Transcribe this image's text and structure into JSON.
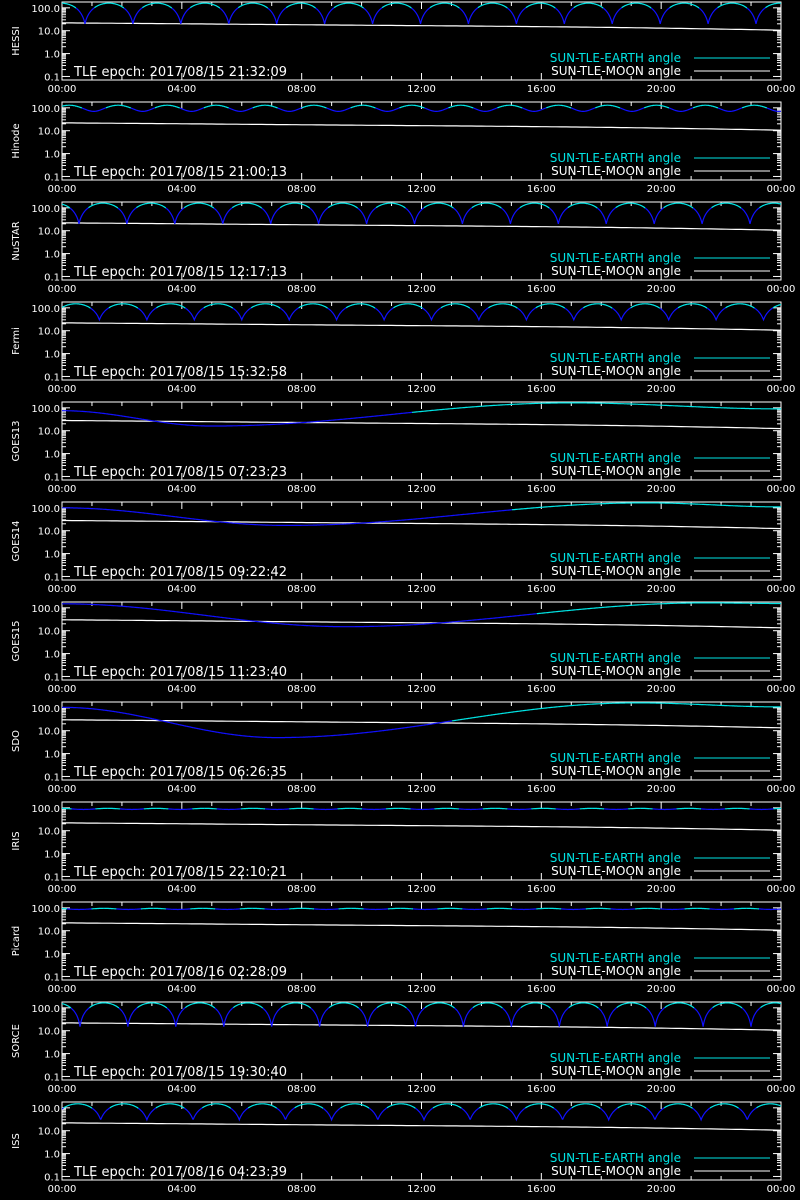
{
  "figure": {
    "background": "#000000",
    "axis_color": "#ffffff",
    "earth_color_day": "#00e5e5",
    "earth_color_night": "#1010ff",
    "moon_color": "#ffffff"
  },
  "chart_data": [
    {
      "type": "line",
      "ylabel": "HESSI",
      "epoch_label": "TLE epoch: 2017/08/15 21:32:09",
      "x_ticks": [
        "00:00",
        "04:00",
        "08:00",
        "12:00",
        "16:00",
        "20:00",
        "00:00"
      ],
      "y_ticks": [
        "100.0",
        "10.0",
        "1.0",
        "0.1"
      ],
      "ylim": [
        0.07,
        180
      ],
      "yscale": "log",
      "orbit_minutes": 96,
      "min_angle": 20,
      "max_angle": 160,
      "profile": "arch",
      "night_fraction": 0.38,
      "phase_minutes": 50,
      "moon_start": 22,
      "moon_end": 11,
      "series": [
        {
          "name": "SUN-TLE-EARTH angle",
          "color": "#00e5e5"
        },
        {
          "name": "SUN-TLE-MOON angle",
          "color": "#ffffff"
        }
      ]
    },
    {
      "type": "line",
      "ylabel": "Hinode",
      "epoch_label": "TLE epoch: 2017/08/15 21:00:13",
      "x_ticks": [
        "00:00",
        "04:00",
        "08:00",
        "12:00",
        "16:00",
        "20:00",
        "00:00"
      ],
      "y_ticks": [
        "100.0",
        "10.0",
        "1.0",
        "0.1"
      ],
      "ylim": [
        0.07,
        180
      ],
      "yscale": "log",
      "orbit_minutes": 98,
      "min_angle": 70,
      "max_angle": 130,
      "profile": "sin",
      "night_fraction": 0.5,
      "phase_minutes": 10,
      "moon_start": 22,
      "moon_end": 11,
      "series": [
        {
          "name": "SUN-TLE-EARTH angle",
          "color": "#00e5e5"
        },
        {
          "name": "SUN-TLE-MOON angle",
          "color": "#ffffff"
        }
      ]
    },
    {
      "type": "line",
      "ylabel": "NuSTAR",
      "epoch_label": "TLE epoch: 2017/08/15 12:17:13",
      "x_ticks": [
        "00:00",
        "04:00",
        "08:00",
        "12:00",
        "16:00",
        "20:00",
        "00:00"
      ],
      "y_ticks": [
        "100.0",
        "10.0",
        "1.0",
        "0.1"
      ],
      "ylim": [
        0.07,
        180
      ],
      "yscale": "log",
      "orbit_minutes": 96,
      "min_angle": 20,
      "max_angle": 160,
      "profile": "arch",
      "night_fraction": 0.38,
      "phase_minutes": 62,
      "moon_start": 22,
      "moon_end": 11,
      "series": [
        {
          "name": "SUN-TLE-EARTH angle",
          "color": "#00e5e5"
        },
        {
          "name": "SUN-TLE-MOON angle",
          "color": "#ffffff"
        }
      ]
    },
    {
      "type": "line",
      "ylabel": "Fermi",
      "epoch_label": "TLE epoch: 2017/08/15 15:32:58",
      "x_ticks": [
        "00:00",
        "04:00",
        "08:00",
        "12:00",
        "16:00",
        "20:00",
        "00:00"
      ],
      "y_ticks": [
        "100.0",
        "10.0",
        "1.0",
        "0.1"
      ],
      "ylim": [
        0.07,
        180
      ],
      "yscale": "log",
      "orbit_minutes": 95,
      "min_angle": 30,
      "max_angle": 150,
      "profile": "arch",
      "night_fraction": 0.38,
      "phase_minutes": 20,
      "moon_start": 22,
      "moon_end": 11,
      "series": [
        {
          "name": "SUN-TLE-EARTH angle",
          "color": "#00e5e5"
        },
        {
          "name": "SUN-TLE-MOON angle",
          "color": "#ffffff"
        }
      ]
    },
    {
      "type": "line",
      "ylabel": "GOES13",
      "epoch_label": "TLE epoch: 2017/08/15 07:23:23",
      "x_ticks": [
        "00:00",
        "04:00",
        "08:00",
        "12:00",
        "16:00",
        "20:00",
        "00:00"
      ],
      "y_ticks": [
        "100.0",
        "10.0",
        "1.0",
        "0.1"
      ],
      "ylim": [
        0.07,
        180
      ],
      "yscale": "log",
      "profile": "geo",
      "geo_points": [
        [
          0,
          75
        ],
        [
          300,
          16
        ],
        [
          1020,
          165
        ],
        [
          1440,
          90
        ]
      ],
      "night_window": [
        0,
        700
      ],
      "moon_start": 28,
      "moon_end": 13,
      "series": [
        {
          "name": "SUN-TLE-EARTH angle",
          "color": "#00e5e5"
        },
        {
          "name": "SUN-TLE-MOON angle",
          "color": "#ffffff"
        }
      ]
    },
    {
      "type": "line",
      "ylabel": "GOES14",
      "epoch_label": "TLE epoch: 2017/08/15 09:22:42",
      "x_ticks": [
        "00:00",
        "04:00",
        "08:00",
        "12:00",
        "16:00",
        "20:00",
        "00:00"
      ],
      "y_ticks": [
        "100.0",
        "10.0",
        "1.0",
        "0.1"
      ],
      "ylim": [
        0.07,
        180
      ],
      "yscale": "log",
      "profile": "geo",
      "geo_points": [
        [
          0,
          100
        ],
        [
          450,
          17
        ],
        [
          1170,
          165
        ],
        [
          1440,
          110
        ]
      ],
      "night_window": [
        0,
        900
      ],
      "moon_start": 28,
      "moon_end": 13,
      "series": [
        {
          "name": "SUN-TLE-EARTH angle",
          "color": "#00e5e5"
        },
        {
          "name": "SUN-TLE-MOON angle",
          "color": "#ffffff"
        }
      ]
    },
    {
      "type": "line",
      "ylabel": "GOES15",
      "epoch_label": "TLE epoch: 2017/08/15 11:23:40",
      "x_ticks": [
        "00:00",
        "04:00",
        "08:00",
        "12:00",
        "16:00",
        "20:00",
        "00:00"
      ],
      "y_ticks": [
        "100.0",
        "10.0",
        "1.0",
        "0.1"
      ],
      "ylim": [
        0.07,
        180
      ],
      "yscale": "log",
      "profile": "geo",
      "geo_points": [
        [
          0,
          150
        ],
        [
          570,
          15
        ],
        [
          1290,
          165
        ],
        [
          1440,
          155
        ]
      ],
      "night_window": [
        0,
        950
      ],
      "moon_start": 30,
      "moon_end": 14,
      "series": [
        {
          "name": "SUN-TLE-EARTH angle",
          "color": "#00e5e5"
        },
        {
          "name": "SUN-TLE-MOON angle",
          "color": "#ffffff"
        }
      ]
    },
    {
      "type": "line",
      "ylabel": "SDO",
      "epoch_label": "TLE epoch: 2017/08/15 06:26:35",
      "x_ticks": [
        "00:00",
        "04:00",
        "08:00",
        "12:00",
        "16:00",
        "20:00",
        "00:00"
      ],
      "y_ticks": [
        "100.0",
        "10.0",
        "1.0",
        "0.1"
      ],
      "ylim": [
        0.07,
        180
      ],
      "yscale": "log",
      "profile": "geo",
      "geo_points": [
        [
          0,
          105
        ],
        [
          430,
          5
        ],
        [
          1150,
          165
        ],
        [
          1440,
          110
        ]
      ],
      "night_window": [
        0,
        780
      ],
      "moon_start": 30,
      "moon_end": 14,
      "series": [
        {
          "name": "SUN-TLE-EARTH angle",
          "color": "#00e5e5"
        },
        {
          "name": "SUN-TLE-MOON angle",
          "color": "#ffffff"
        }
      ]
    },
    {
      "type": "line",
      "ylabel": "IRIS",
      "epoch_label": "TLE epoch: 2017/08/15 22:10:21",
      "x_ticks": [
        "00:00",
        "04:00",
        "08:00",
        "12:00",
        "16:00",
        "20:00",
        "00:00"
      ],
      "y_ticks": [
        "100.0",
        "10.0",
        "1.0",
        "0.1"
      ],
      "ylim": [
        0.07,
        180
      ],
      "yscale": "log",
      "orbit_minutes": 97,
      "min_angle": 85,
      "max_angle": 95,
      "profile": "sin",
      "night_fraction": 0.5,
      "phase_minutes": 30,
      "moon_start": 22,
      "moon_end": 11,
      "series": [
        {
          "name": "SUN-TLE-EARTH angle",
          "color": "#00e5e5"
        },
        {
          "name": "SUN-TLE-MOON angle",
          "color": "#ffffff"
        }
      ]
    },
    {
      "type": "line",
      "ylabel": "Picard",
      "epoch_label": "TLE epoch: 2017/08/16 02:28:09",
      "x_ticks": [
        "00:00",
        "04:00",
        "08:00",
        "12:00",
        "16:00",
        "20:00",
        "00:00"
      ],
      "y_ticks": [
        "100.0",
        "10.0",
        "1.0",
        "0.1"
      ],
      "ylim": [
        0.07,
        180
      ],
      "yscale": "log",
      "orbit_minutes": 99,
      "min_angle": 85,
      "max_angle": 95,
      "profile": "sin",
      "night_fraction": 0.5,
      "phase_minutes": 40,
      "moon_start": 22,
      "moon_end": 11,
      "series": [
        {
          "name": "SUN-TLE-EARTH angle",
          "color": "#00e5e5"
        },
        {
          "name": "SUN-TLE-MOON angle",
          "color": "#ffffff"
        }
      ]
    },
    {
      "type": "line",
      "ylabel": "SORCE",
      "epoch_label": "TLE epoch: 2017/08/15 19:30:40",
      "x_ticks": [
        "00:00",
        "04:00",
        "08:00",
        "12:00",
        "16:00",
        "20:00",
        "00:00"
      ],
      "y_ticks": [
        "100.0",
        "10.0",
        "1.0",
        "0.1"
      ],
      "ylim": [
        0.07,
        180
      ],
      "yscale": "log",
      "orbit_minutes": 96,
      "min_angle": 15,
      "max_angle": 165,
      "profile": "arch",
      "night_fraction": 0.38,
      "phase_minutes": 60,
      "moon_start": 22,
      "moon_end": 11,
      "series": [
        {
          "name": "SUN-TLE-EARTH angle",
          "color": "#00e5e5"
        },
        {
          "name": "SUN-TLE-MOON angle",
          "color": "#ffffff"
        }
      ]
    },
    {
      "type": "line",
      "ylabel": "ISS",
      "epoch_label": "TLE epoch: 2017/08/16 04:23:39",
      "x_ticks": [
        "00:00",
        "04:00",
        "08:00",
        "12:00",
        "16:00",
        "20:00",
        "00:00"
      ],
      "y_ticks": [
        "100.0",
        "10.0",
        "1.0",
        "0.1"
      ],
      "ylim": [
        0.07,
        180
      ],
      "yscale": "log",
      "orbit_minutes": 92.5,
      "min_angle": 30,
      "max_angle": 150,
      "profile": "arch",
      "night_fraction": 0.38,
      "phase_minutes": 15,
      "moon_start": 22,
      "moon_end": 11,
      "series": [
        {
          "name": "SUN-TLE-EARTH angle",
          "color": "#00e5e5"
        },
        {
          "name": "SUN-TLE-MOON angle",
          "color": "#ffffff"
        }
      ]
    }
  ]
}
